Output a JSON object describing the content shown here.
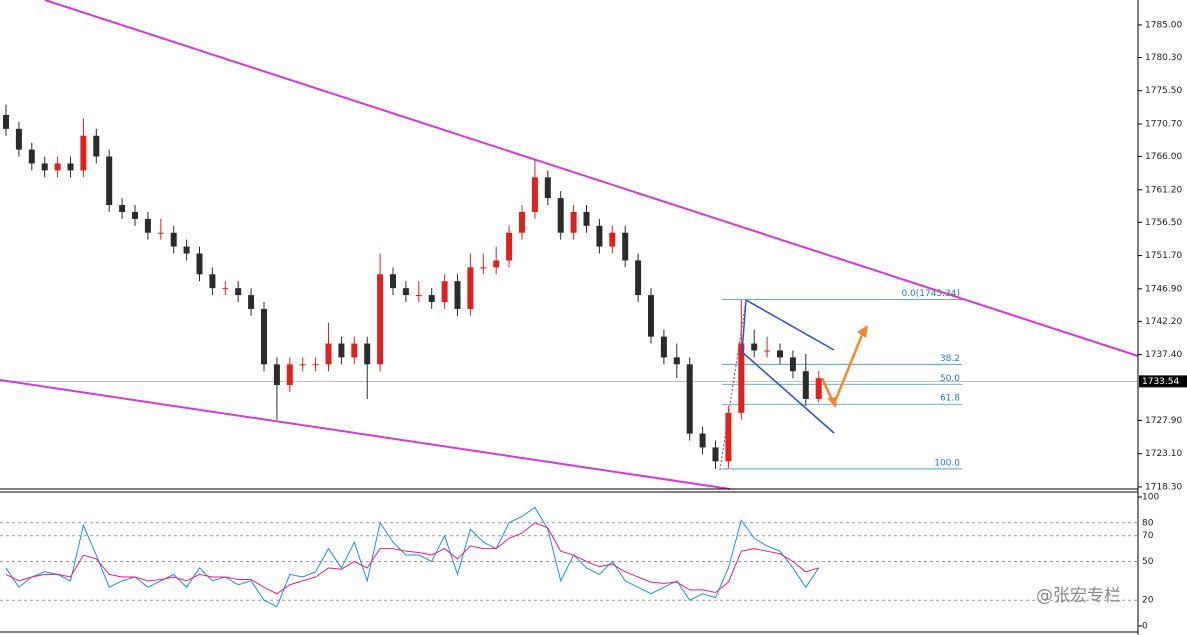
{
  "chart_data": {
    "type": "candlestick",
    "up_color": "#e0201b",
    "down_color": "#2b2b2b",
    "open": [
      1772,
      1770,
      1767,
      1765,
      1764,
      1765,
      1764,
      1769,
      1766,
      1759,
      1758,
      1757,
      1755,
      1755,
      1753,
      1752,
      1749,
      1747,
      1747,
      1746,
      1744,
      1736,
      1733,
      1736,
      1736,
      1736,
      1739,
      1737,
      1739,
      1736,
      1749,
      1747,
      1746,
      1746,
      1745,
      1748,
      1744,
      1750,
      1750,
      1751,
      1755,
      1758,
      1763,
      1760,
      1755,
      1758,
      1756,
      1753,
      1755,
      1751,
      1746,
      1740,
      1737,
      1736,
      1726,
      1724,
      1722,
      1729,
      1739,
      1738,
      1738,
      1737,
      1735,
      1731
    ],
    "high": [
      1773.5,
      1771,
      1768,
      1766,
      1766,
      1766,
      1771.5,
      1770,
      1767,
      1760,
      1759,
      1758,
      1757,
      1756,
      1754,
      1753,
      1750,
      1748,
      1748,
      1747,
      1745,
      1737,
      1737,
      1737,
      1737,
      1742,
      1740,
      1740,
      1740,
      1752,
      1750,
      1748,
      1748,
      1747,
      1749,
      1749,
      1752,
      1752,
      1753,
      1756,
      1759,
      1765.5,
      1764,
      1761,
      1759,
      1759,
      1757,
      1756,
      1756,
      1752,
      1747,
      1741,
      1739,
      1737,
      1727,
      1725,
      1730,
      1745.3,
      1741,
      1740,
      1739,
      1738,
      1737.5,
      1735
    ],
    "low": [
      1769,
      1766,
      1764,
      1763,
      1763,
      1763,
      1763,
      1765,
      1758,
      1757,
      1756,
      1754,
      1754,
      1752,
      1751,
      1748,
      1746,
      1746,
      1745,
      1743,
      1735,
      1728,
      1732,
      1735,
      1735,
      1735,
      1736,
      1736,
      1731,
      1735,
      1746,
      1745,
      1745,
      1744,
      1744,
      1743,
      1743,
      1749,
      1749,
      1750,
      1754,
      1757,
      1759,
      1754,
      1754,
      1755,
      1752,
      1752,
      1750,
      1745,
      1739,
      1736,
      1734,
      1725,
      1723,
      1720.9,
      1721,
      1728,
      1737,
      1737,
      1736,
      1734,
      1730,
      1730.5
    ],
    "close": [
      1770,
      1767,
      1765,
      1764,
      1765,
      1764,
      1769,
      1766,
      1759,
      1758,
      1757,
      1755,
      1755,
      1753,
      1752,
      1749,
      1747,
      1747,
      1746,
      1744,
      1736,
      1733,
      1736,
      1736,
      1736,
      1739,
      1737,
      1739,
      1736,
      1749,
      1747,
      1746,
      1746,
      1745,
      1748,
      1744,
      1750,
      1750,
      1751,
      1755,
      1758,
      1763,
      1760,
      1755,
      1758,
      1756,
      1753,
      1755,
      1751,
      1746,
      1740,
      1737,
      1736,
      1726,
      1724,
      1722,
      1729,
      1739,
      1738,
      1738,
      1737,
      1735,
      1731,
      1734
    ],
    "ylim": [
      1718,
      1788.6
    ],
    "yticks": [
      {
        "value": 1785,
        "label": "1785.00"
      },
      {
        "value": 1780.3,
        "label": "1780.30"
      },
      {
        "value": 1775.5,
        "label": "1775.50"
      },
      {
        "value": 1770.7,
        "label": "1770.70"
      },
      {
        "value": 1766,
        "label": "1766.00"
      },
      {
        "value": 1761.2,
        "label": "1761.20"
      },
      {
        "value": 1756.5,
        "label": "1756.50"
      },
      {
        "value": 1751.7,
        "label": "1751.70"
      },
      {
        "value": 1746.9,
        "label": "1746.90"
      },
      {
        "value": 1742.2,
        "label": "1742.20"
      },
      {
        "value": 1737.4,
        "label": "1737.40"
      },
      {
        "value": 1727.9,
        "label": "1727.90"
      },
      {
        "value": 1723.1,
        "label": "1723.10"
      },
      {
        "value": 1718.3,
        "label": "1718.30"
      }
    ],
    "current_price": 1733.54,
    "fib_high": 1745.34,
    "fib_low": 1720.9,
    "fib_levels": [
      {
        "value": 0,
        "label": "0.0(1745.34)"
      },
      38.2,
      {
        "value": 50,
        "label": "50.0"
      },
      61.8,
      {
        "value": 100,
        "label": "100.0"
      }
    ],
    "oscillator": {
      "ylim": [
        0,
        100
      ],
      "yticks": [
        100,
        80,
        70,
        50,
        20,
        0
      ],
      "series": [
        {
          "color": "#1e8fe0",
          "values": [
            45,
            30,
            38,
            42,
            40,
            35,
            78,
            55,
            30,
            35,
            38,
            30,
            35,
            40,
            30,
            45,
            35,
            38,
            32,
            35,
            20,
            15,
            40,
            38,
            42,
            60,
            45,
            65,
            35,
            80,
            65,
            55,
            55,
            50,
            70,
            40,
            75,
            65,
            60,
            80,
            85,
            92,
            75,
            35,
            55,
            45,
            40,
            50,
            35,
            30,
            25,
            30,
            35,
            20,
            25,
            22,
            45,
            82,
            68,
            62,
            58,
            45,
            30,
            45
          ]
        },
        {
          "color": "#e0208a",
          "values": [
            40,
            35,
            38,
            40,
            40,
            38,
            55,
            52,
            40,
            38,
            38,
            35,
            36,
            38,
            35,
            40,
            38,
            38,
            36,
            36,
            30,
            25,
            32,
            35,
            38,
            45,
            44,
            50,
            45,
            60,
            60,
            58,
            57,
            55,
            60,
            52,
            62,
            60,
            60,
            68,
            72,
            80,
            76,
            58,
            55,
            50,
            46,
            48,
            42,
            38,
            34,
            33,
            34,
            28,
            28,
            26,
            34,
            58,
            60,
            58,
            56,
            50,
            42,
            45
          ]
        }
      ]
    },
    "watermark": "@张宏专栏"
  }
}
